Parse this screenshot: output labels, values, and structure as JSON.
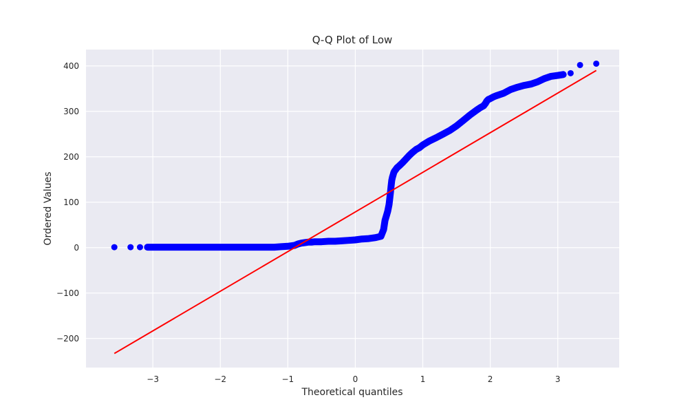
{
  "chart_data": {
    "type": "scatter",
    "title": "Q-Q Plot of Low",
    "xlabel": "Theoretical quantiles",
    "ylabel": "Ordered Values",
    "xlim": [
      -3.99,
      3.91
    ],
    "ylim": [
      -264,
      436
    ],
    "xticks": [
      -3,
      -2,
      -1,
      0,
      1,
      2,
      3
    ],
    "xtick_labels": [
      "−3",
      "−2",
      "−1",
      "0",
      "1",
      "2",
      "3"
    ],
    "yticks": [
      -200,
      -100,
      0,
      100,
      200,
      300,
      400
    ],
    "ytick_labels": [
      "−200",
      "−100",
      "0",
      "100",
      "200",
      "300",
      "400"
    ],
    "grid": true,
    "background": "#eaeaf2",
    "point_color": "#0000ff",
    "line_color": "#ff0000",
    "series": [
      {
        "type": "scatter",
        "x": [
          -3.57,
          -3.33,
          -3.19,
          -3.08,
          -3.0,
          -2.9,
          -2.8,
          -2.6,
          -2.4,
          -2.2,
          -2.0,
          -1.8,
          -1.6,
          -1.4,
          -1.2,
          -1.1,
          -1.0,
          -0.9,
          -0.85,
          -0.8,
          -0.75,
          -0.7,
          -0.65,
          -0.6,
          -0.5,
          -0.4,
          -0.3,
          -0.2,
          -0.1,
          0.0,
          0.1,
          0.2,
          0.3,
          0.38,
          0.42,
          0.44,
          0.46,
          0.48,
          0.5,
          0.51,
          0.52,
          0.53,
          0.54,
          0.55,
          0.56,
          0.57,
          0.58,
          0.6,
          0.62,
          0.65,
          0.7,
          0.75,
          0.8,
          0.85,
          0.9,
          0.95,
          1.0,
          1.1,
          1.2,
          1.3,
          1.4,
          1.5,
          1.6,
          1.7,
          1.8,
          1.85,
          1.9,
          1.93,
          1.95,
          1.97,
          2.0,
          2.05,
          2.1,
          2.2,
          2.3,
          2.4,
          2.5,
          2.6,
          2.7,
          2.8,
          2.9,
          3.0,
          3.08,
          3.19,
          3.33,
          3.57
        ],
        "y": [
          1,
          1,
          1,
          1,
          1,
          1,
          1,
          1,
          1,
          1,
          1,
          1,
          1,
          1,
          1,
          2,
          3,
          5,
          8,
          10,
          11,
          12,
          12,
          13,
          13,
          14,
          14,
          15,
          16,
          17,
          19,
          20,
          22,
          25,
          40,
          60,
          70,
          80,
          95,
          108,
          120,
          135,
          148,
          155,
          160,
          165,
          168,
          172,
          176,
          180,
          187,
          195,
          203,
          210,
          216,
          220,
          226,
          235,
          242,
          250,
          258,
          268,
          280,
          292,
          303,
          308,
          312,
          318,
          323,
          326,
          328,
          332,
          335,
          340,
          348,
          353,
          357,
          360,
          365,
          372,
          377,
          379,
          381,
          384,
          402,
          405
        ]
      },
      {
        "type": "line",
        "x": [
          -3.57,
          3.57
        ],
        "y": [
          -233,
          390
        ]
      }
    ]
  }
}
